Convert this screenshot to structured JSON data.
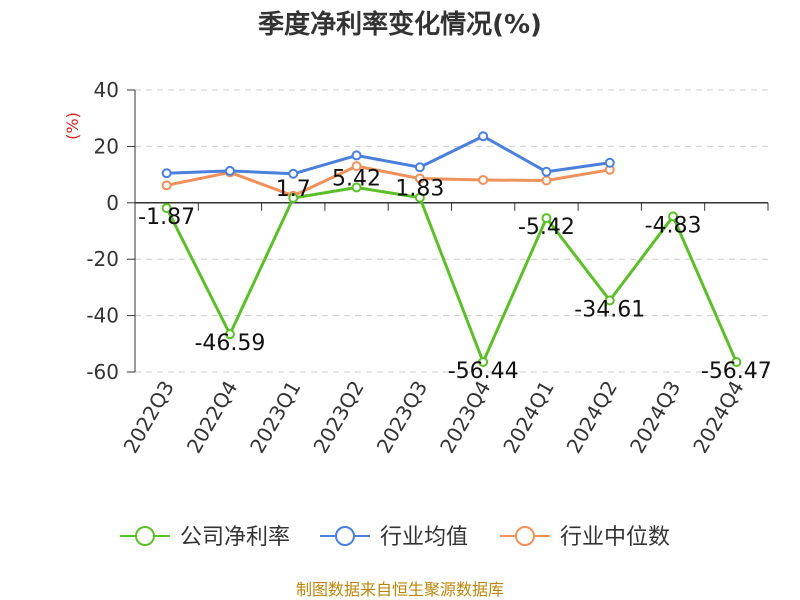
{
  "chart_data": {
    "type": "line",
    "title": "季度净利率变化情况(%)",
    "ylabel": "(%)",
    "xlabel": "",
    "ylim": [
      -60,
      40
    ],
    "yticks": [
      40,
      20,
      0,
      -20,
      -40,
      -60
    ],
    "grid": true,
    "legend_position": "bottom",
    "categories": [
      "2022Q3",
      "2022Q4",
      "2023Q1",
      "2023Q2",
      "2023Q3",
      "2023Q4",
      "2024Q1",
      "2024Q2",
      "2024Q3",
      "2024Q4"
    ],
    "series": [
      {
        "name": "公司净利率",
        "color": "#5cbf2a",
        "values": [
          -1.87,
          -46.59,
          1.7,
          5.42,
          1.83,
          -56.44,
          -5.42,
          -34.61,
          -4.83,
          -56.47
        ],
        "labels": [
          "-1.87",
          "-46.59",
          "1.7",
          "5.42",
          "1.83",
          "-56.44",
          "-5.42",
          "-34.61",
          "-4.83",
          "-56.47"
        ]
      },
      {
        "name": "行业均值",
        "color": "#4a7fdc",
        "values": [
          10.5,
          11.3,
          10.3,
          16.8,
          12.6,
          23.6,
          11.0,
          14.2,
          null,
          null
        ]
      },
      {
        "name": "行业中位数",
        "color": "#f0905a",
        "values": [
          6.2,
          10.8,
          2.5,
          13.0,
          8.6,
          8.1,
          7.9,
          11.7,
          null,
          null
        ]
      }
    ]
  },
  "source_text": "制图数据来自恒生聚源数据库"
}
